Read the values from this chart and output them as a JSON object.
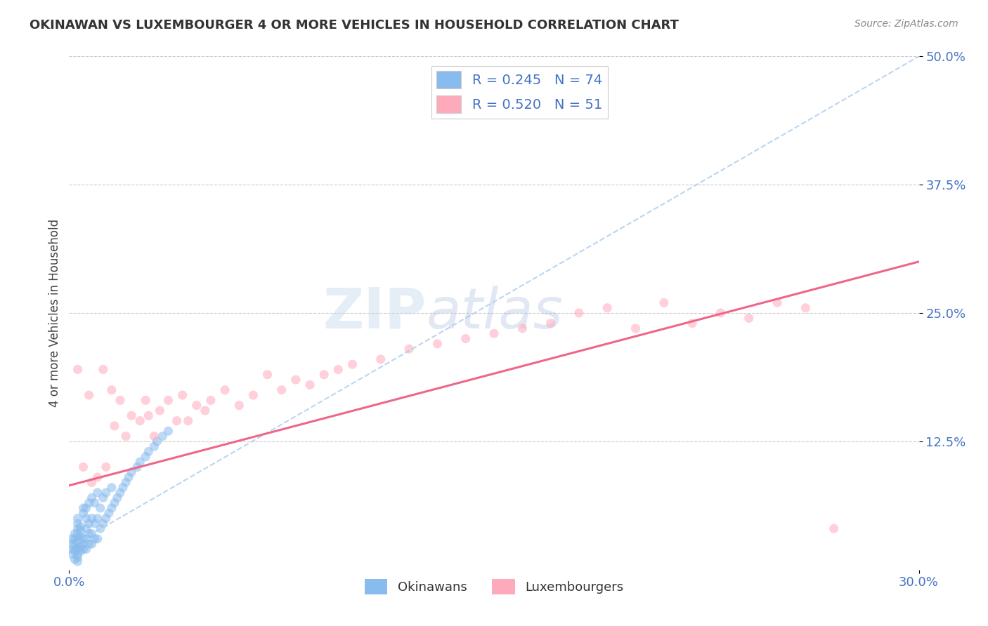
{
  "title": "OKINAWAN VS LUXEMBOURGER 4 OR MORE VEHICLES IN HOUSEHOLD CORRELATION CHART",
  "source": "Source: ZipAtlas.com",
  "ylabel_label": "4 or more Vehicles in Household",
  "x_min": 0.0,
  "x_max": 0.3,
  "y_min": 0.0,
  "y_max": 0.5,
  "x_ticks": [
    0.0,
    0.3
  ],
  "x_tick_labels": [
    "0.0%",
    "30.0%"
  ],
  "y_tick_labels": [
    "12.5%",
    "25.0%",
    "37.5%",
    "50.0%"
  ],
  "y_ticks": [
    0.125,
    0.25,
    0.375,
    0.5
  ],
  "legend_label1": "Okinawans",
  "legend_label2": "Luxembourgers",
  "r1": 0.245,
  "n1": 74,
  "r2": 0.52,
  "n2": 51,
  "color_blue": "#88bbee",
  "color_pink": "#ffaabb",
  "color_blue_line": "#aaccee",
  "color_pink_line": "#ee6688",
  "watermark_zip": "ZIP",
  "watermark_atlas": "atlas",
  "background_color": "#ffffff",
  "grid_color": "#cccccc",
  "ok_trend_x0": 0.0,
  "ok_trend_y0": 0.022,
  "ok_trend_x1": 0.3,
  "ok_trend_y1": 0.5,
  "lux_trend_x0": 0.0,
  "lux_trend_y0": 0.082,
  "lux_trend_x1": 0.3,
  "lux_trend_y1": 0.3,
  "okinawan_x": [
    0.001,
    0.001,
    0.001,
    0.001,
    0.002,
    0.002,
    0.002,
    0.002,
    0.002,
    0.002,
    0.003,
    0.003,
    0.003,
    0.003,
    0.003,
    0.003,
    0.003,
    0.003,
    0.003,
    0.003,
    0.004,
    0.004,
    0.004,
    0.004,
    0.004,
    0.004,
    0.005,
    0.005,
    0.005,
    0.005,
    0.005,
    0.006,
    0.006,
    0.006,
    0.006,
    0.006,
    0.007,
    0.007,
    0.007,
    0.007,
    0.008,
    0.008,
    0.008,
    0.008,
    0.009,
    0.009,
    0.009,
    0.01,
    0.01,
    0.01,
    0.011,
    0.011,
    0.012,
    0.012,
    0.013,
    0.013,
    0.014,
    0.015,
    0.015,
    0.016,
    0.017,
    0.018,
    0.019,
    0.02,
    0.021,
    0.022,
    0.024,
    0.025,
    0.027,
    0.028,
    0.03,
    0.031,
    0.033,
    0.035
  ],
  "okinawan_y": [
    0.02,
    0.03,
    0.015,
    0.025,
    0.018,
    0.025,
    0.03,
    0.022,
    0.035,
    0.01,
    0.015,
    0.02,
    0.025,
    0.03,
    0.035,
    0.04,
    0.012,
    0.045,
    0.05,
    0.008,
    0.018,
    0.022,
    0.028,
    0.032,
    0.038,
    0.042,
    0.02,
    0.025,
    0.03,
    0.055,
    0.06,
    0.02,
    0.03,
    0.04,
    0.05,
    0.06,
    0.025,
    0.035,
    0.045,
    0.065,
    0.025,
    0.035,
    0.05,
    0.07,
    0.03,
    0.045,
    0.065,
    0.03,
    0.05,
    0.075,
    0.04,
    0.06,
    0.045,
    0.07,
    0.05,
    0.075,
    0.055,
    0.06,
    0.08,
    0.065,
    0.07,
    0.075,
    0.08,
    0.085,
    0.09,
    0.095,
    0.1,
    0.105,
    0.11,
    0.115,
    0.12,
    0.125,
    0.13,
    0.135
  ],
  "luxembourger_x": [
    0.003,
    0.005,
    0.007,
    0.008,
    0.01,
    0.012,
    0.013,
    0.015,
    0.016,
    0.018,
    0.02,
    0.022,
    0.025,
    0.027,
    0.028,
    0.03,
    0.032,
    0.035,
    0.038,
    0.04,
    0.042,
    0.045,
    0.048,
    0.05,
    0.055,
    0.06,
    0.065,
    0.07,
    0.075,
    0.08,
    0.085,
    0.09,
    0.095,
    0.1,
    0.11,
    0.12,
    0.13,
    0.14,
    0.15,
    0.16,
    0.17,
    0.18,
    0.19,
    0.2,
    0.21,
    0.22,
    0.23,
    0.24,
    0.25,
    0.26,
    0.27
  ],
  "luxembourger_y": [
    0.195,
    0.1,
    0.17,
    0.085,
    0.09,
    0.195,
    0.1,
    0.175,
    0.14,
    0.165,
    0.13,
    0.15,
    0.145,
    0.165,
    0.15,
    0.13,
    0.155,
    0.165,
    0.145,
    0.17,
    0.145,
    0.16,
    0.155,
    0.165,
    0.175,
    0.16,
    0.17,
    0.19,
    0.175,
    0.185,
    0.18,
    0.19,
    0.195,
    0.2,
    0.205,
    0.215,
    0.22,
    0.225,
    0.23,
    0.235,
    0.24,
    0.25,
    0.255,
    0.235,
    0.26,
    0.24,
    0.25,
    0.245,
    0.26,
    0.255,
    0.04
  ]
}
